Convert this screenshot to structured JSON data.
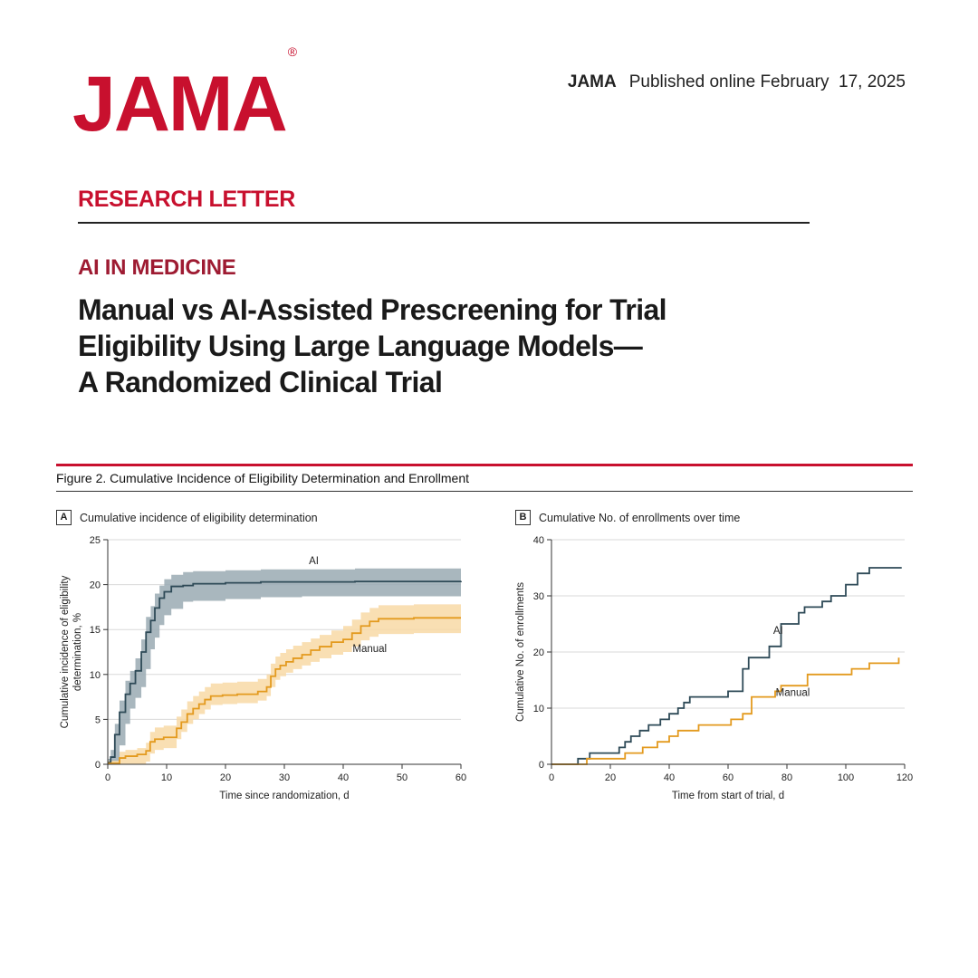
{
  "header": {
    "logo": "JAMA",
    "journal": "JAMA",
    "published": "Published online February  17, 2025"
  },
  "article": {
    "section": "RESEARCH LETTER",
    "kicker": "AI IN MEDICINE",
    "title_lines": [
      "Manual vs AI-Assisted Prescreening for Trial",
      "Eligibility Using Large Language Models—",
      "A Randomized Clinical Trial"
    ]
  },
  "figure": {
    "caption": "Figure 2. Cumulative Incidence of Eligibility Determination and Enrollment"
  },
  "colors": {
    "ai": "#2e4a57",
    "ai_band": "#9aaab3",
    "manual": "#e39a1e",
    "manual_band": "#f8d9a6",
    "grid": "#d9d9d9"
  },
  "chart_data": [
    {
      "panel": "A",
      "type": "line",
      "title": "Cumulative incidence of eligibility determination",
      "xlabel": "Time since randomization, d",
      "ylabel": "Cumulative incidence of eligibility determination, %",
      "xlim": [
        0,
        60
      ],
      "ylim": [
        0,
        25
      ],
      "xticks": [
        0,
        10,
        20,
        30,
        40,
        50,
        60
      ],
      "yticks": [
        0,
        5,
        10,
        15,
        20,
        25
      ],
      "grid": "horizontal",
      "series": [
        {
          "name": "AI",
          "step": true,
          "ci_band": true,
          "points": [
            [
              0,
              0.2
            ],
            [
              0.5,
              0.8
            ],
            [
              1.2,
              3.3
            ],
            [
              2,
              5.8
            ],
            [
              3,
              7.8
            ],
            [
              3.8,
              9.0
            ],
            [
              4.7,
              10.4
            ],
            [
              5.7,
              12.5
            ],
            [
              6.5,
              14.7
            ],
            [
              7.3,
              16.0
            ],
            [
              8,
              17.4
            ],
            [
              8.8,
              18.5
            ],
            [
              9.6,
              19.2
            ],
            [
              10.8,
              19.8
            ],
            [
              12.8,
              19.9
            ],
            [
              14.5,
              20.1
            ],
            [
              20,
              20.2
            ],
            [
              26,
              20.3
            ],
            [
              33,
              20.3
            ],
            [
              42,
              20.35
            ],
            [
              60,
              20.4
            ]
          ],
          "ci_lower": [
            0,
            0,
            0,
            2.1,
            4.5,
            6.2,
            7.4,
            8.6,
            10.6,
            12.8,
            14.1,
            15.5,
            16.6,
            17.3,
            18.1,
            18.2,
            18.4,
            18.6,
            18.7,
            18.7,
            18.8
          ],
          "ci_upper": [
            0.6,
            1.6,
            4.5,
            7.1,
            9.3,
            10.4,
            11.8,
            13.9,
            16.4,
            17.6,
            19.0,
            19.9,
            20.6,
            21.1,
            21.4,
            21.5,
            21.6,
            21.7,
            21.7,
            21.8,
            21.9
          ]
        },
        {
          "name": "Manual",
          "step": true,
          "ci_band": true,
          "points": [
            [
              0,
              0.1
            ],
            [
              2,
              0.7
            ],
            [
              3,
              0.9
            ],
            [
              5,
              1.1
            ],
            [
              6.5,
              1.5
            ],
            [
              7.2,
              2.5
            ],
            [
              8,
              2.8
            ],
            [
              9.5,
              3.0
            ],
            [
              11.7,
              4.0
            ],
            [
              12.5,
              4.7
            ],
            [
              13.5,
              5.6
            ],
            [
              14.5,
              6.2
            ],
            [
              15.5,
              6.7
            ],
            [
              16.5,
              7.2
            ],
            [
              17.5,
              7.6
            ],
            [
              19.5,
              7.7
            ],
            [
              22,
              7.8
            ],
            [
              25.5,
              8.1
            ],
            [
              27,
              8.6
            ],
            [
              27.7,
              9.8
            ],
            [
              28.5,
              10.6
            ],
            [
              29.3,
              11.0
            ],
            [
              30.3,
              11.4
            ],
            [
              31.5,
              11.8
            ],
            [
              33,
              12.2
            ],
            [
              34.5,
              12.7
            ],
            [
              36,
              13.1
            ],
            [
              38,
              13.6
            ],
            [
              40,
              13.9
            ],
            [
              41.5,
              14.6
            ],
            [
              43,
              15.4
            ],
            [
              44.5,
              15.9
            ],
            [
              46,
              16.2
            ],
            [
              52,
              16.3
            ],
            [
              60,
              16.3
            ]
          ],
          "ci_lower": [
            0,
            0,
            0,
            0,
            0.3,
            1.2,
            1.6,
            1.8,
            2.8,
            3.6,
            4.5,
            5.0,
            5.6,
            6.1,
            6.6,
            6.7,
            6.8,
            7.1,
            7.6,
            8.6,
            9.4,
            9.8,
            10.2,
            10.6,
            11.0,
            11.4,
            11.8,
            12.2,
            12.5,
            13.1,
            13.8,
            14.2,
            14.5,
            14.6,
            14.6
          ],
          "ci_upper": [
            0.4,
            1.4,
            1.6,
            1.8,
            2.4,
            3.6,
            4.1,
            4.3,
            5.3,
            6.1,
            7.0,
            7.6,
            8.1,
            8.6,
            9.0,
            9.1,
            9.2,
            9.5,
            10.0,
            11.2,
            12.0,
            12.4,
            12.8,
            13.2,
            13.6,
            14.0,
            14.4,
            14.9,
            15.4,
            16.1,
            16.9,
            17.4,
            17.7,
            17.8,
            17.8
          ]
        }
      ],
      "annotations": [
        {
          "text": "AI",
          "x": 35,
          "y": 22.3
        },
        {
          "text": "Manual",
          "x": 44.5,
          "y": 12.5
        }
      ]
    },
    {
      "panel": "B",
      "type": "line",
      "title": "Cumulative No. of enrollments over time",
      "xlabel": "Time from start of trial, d",
      "ylabel": "Cumulative No. of enrollments",
      "xlim": [
        0,
        120
      ],
      "ylim": [
        0,
        40
      ],
      "xticks": [
        0,
        20,
        40,
        60,
        80,
        100,
        120
      ],
      "yticks": [
        0,
        10,
        20,
        30,
        40
      ],
      "grid": "horizontal",
      "series": [
        {
          "name": "AI",
          "step": true,
          "points": [
            [
              0,
              0
            ],
            [
              9,
              1
            ],
            [
              13,
              2
            ],
            [
              23,
              3
            ],
            [
              25,
              4
            ],
            [
              27,
              5
            ],
            [
              30,
              6
            ],
            [
              33,
              7
            ],
            [
              37,
              8
            ],
            [
              40,
              9
            ],
            [
              43,
              10
            ],
            [
              45,
              11
            ],
            [
              47,
              12
            ],
            [
              60,
              13
            ],
            [
              65,
              17
            ],
            [
              67,
              19
            ],
            [
              74,
              21
            ],
            [
              78,
              25
            ],
            [
              84,
              27
            ],
            [
              86,
              28
            ],
            [
              92,
              29
            ],
            [
              95,
              30
            ],
            [
              100,
              32
            ],
            [
              104,
              34
            ],
            [
              108,
              35
            ],
            [
              119,
              35
            ]
          ],
          "ci_band": false
        },
        {
          "name": "Manual",
          "step": true,
          "points": [
            [
              0,
              0
            ],
            [
              12,
              1
            ],
            [
              25,
              2
            ],
            [
              31,
              3
            ],
            [
              36,
              4
            ],
            [
              40,
              5
            ],
            [
              43,
              6
            ],
            [
              50,
              7
            ],
            [
              61,
              8
            ],
            [
              65,
              9
            ],
            [
              68,
              12
            ],
            [
              76,
              13
            ],
            [
              78,
              14
            ],
            [
              87,
              16
            ],
            [
              102,
              17
            ],
            [
              108,
              18
            ],
            [
              118,
              19
            ]
          ],
          "ci_band": false
        }
      ],
      "annotations": [
        {
          "text": "AI",
          "x": 77,
          "y": 23.2
        },
        {
          "text": "Manual",
          "x": 82,
          "y": 12.2
        }
      ]
    }
  ]
}
